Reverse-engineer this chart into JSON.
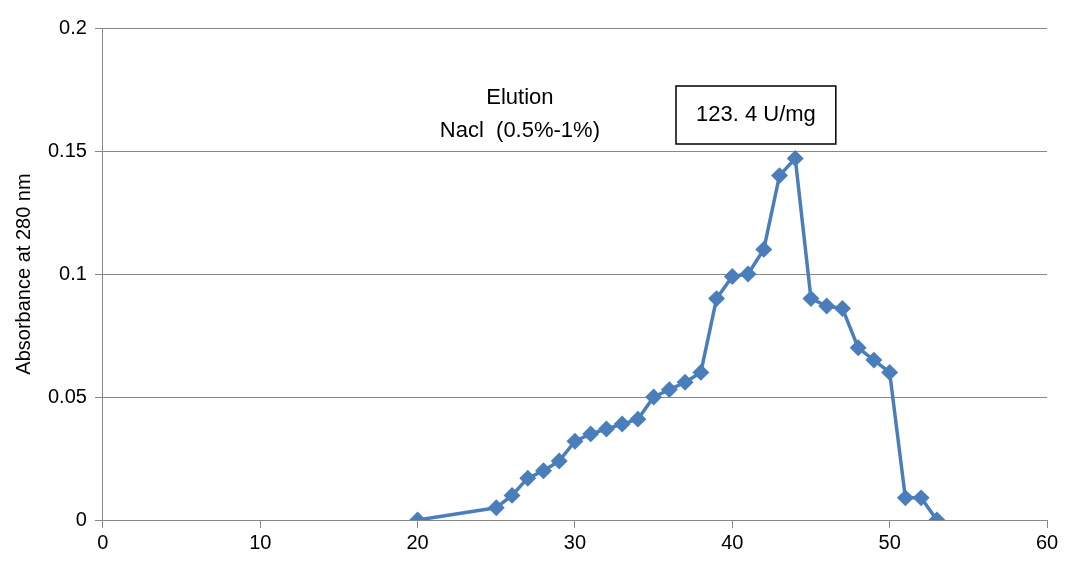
{
  "chart_data": {
    "type": "line",
    "ylabel": "Absorbance at 280 nm",
    "x": [
      20,
      25,
      26,
      27,
      28,
      29,
      30,
      31,
      32,
      33,
      34,
      35,
      36,
      37,
      38,
      39,
      40,
      41,
      42,
      43,
      44,
      45,
      46,
      47,
      48,
      49,
      50,
      51,
      52,
      53
    ],
    "series": [
      {
        "color": "#4a7ebb",
        "values": [
          0,
          0.005,
          0.01,
          0.017,
          0.02,
          0.024,
          0.032,
          0.035,
          0.037,
          0.039,
          0.041,
          0.05,
          0.053,
          0.056,
          0.06,
          0.09,
          0.099,
          0.1,
          0.11,
          0.14,
          0.147,
          0.09,
          0.087,
          0.086,
          0.07,
          0.065,
          0.06,
          0.009,
          0.009,
          0
        ]
      }
    ],
    "xlim": [
      0,
      60
    ],
    "xticks": [
      0,
      10,
      20,
      30,
      40,
      50,
      60
    ],
    "ylim": [
      0,
      0.2
    ],
    "yticks": [
      0,
      0.05,
      0.1,
      0.15,
      0.2
    ],
    "grid": "y",
    "marker": "diamond",
    "line_style": "solid",
    "legend": false,
    "annotations": [
      "Elution\nNacl  (0.5%-1%)",
      "123. 4 U/mg"
    ]
  }
}
